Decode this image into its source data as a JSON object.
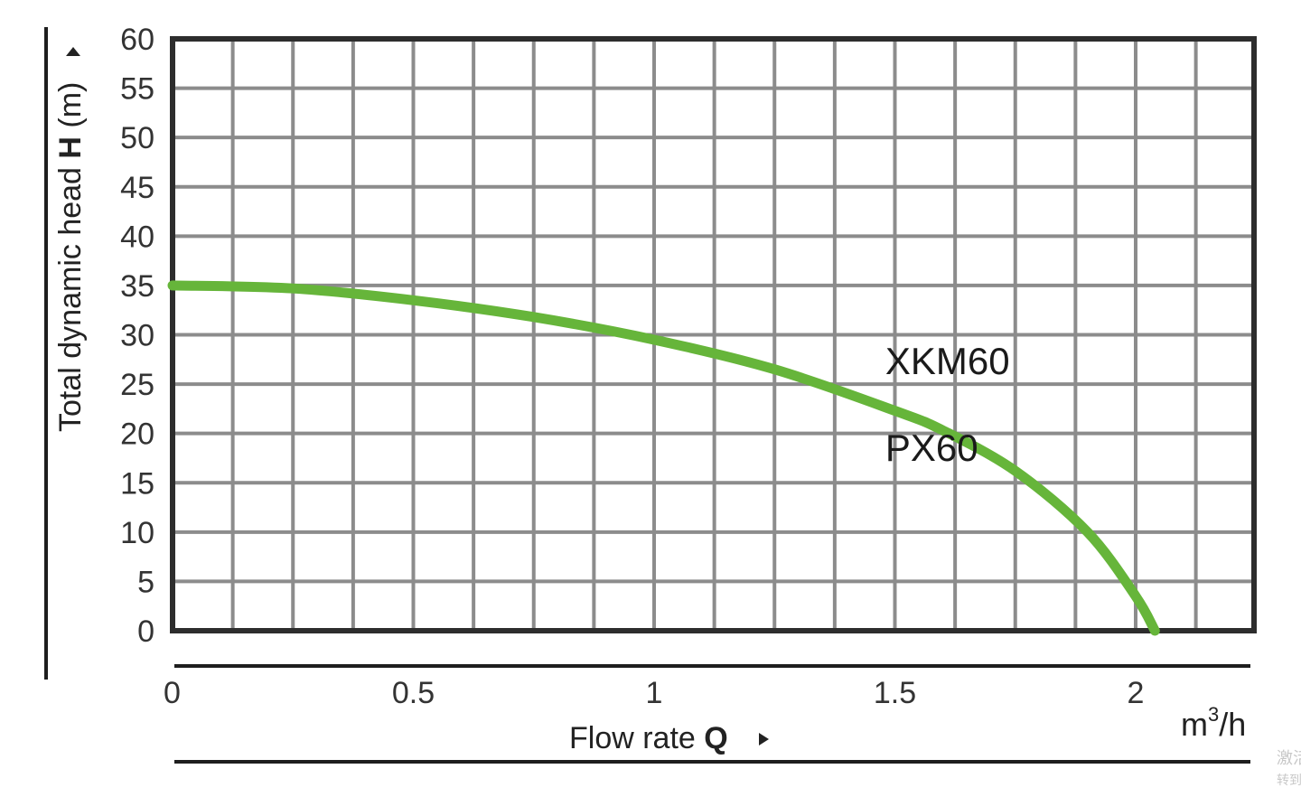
{
  "chart_data": {
    "type": "line",
    "title": "",
    "xlabel_text": "Flow rate ",
    "xlabel_symbol": "Q",
    "ylabel_text": "Total dynamic head ",
    "ylabel_symbol": "H",
    "ylabel_unit": " (m)",
    "x_unit_base": "m",
    "x_unit_sup": "3",
    "x_unit_rest": "/h",
    "xlim": [
      0,
      2.25
    ],
    "ylim": [
      0,
      60
    ],
    "x_ticks": [
      0,
      0.5,
      1,
      1.5,
      2
    ],
    "x_tick_labels": [
      "0",
      "0.5",
      "1",
      "1.5",
      "2"
    ],
    "y_ticks": [
      0,
      5,
      10,
      15,
      20,
      25,
      30,
      35,
      40,
      45,
      50,
      55,
      60
    ],
    "y_tick_labels": [
      "0",
      "5",
      "10",
      "15",
      "20",
      "25",
      "30",
      "35",
      "40",
      "45",
      "50",
      "55",
      "60"
    ],
    "grid": true,
    "series": [
      {
        "name": "XKM60 / PX60",
        "color": "#66b53a",
        "x": [
          0,
          0.25,
          0.5,
          0.75,
          1.0,
          1.25,
          1.5,
          1.6,
          1.75,
          1.9,
          2.0,
          2.04
        ],
        "y": [
          35,
          34.7,
          33.5,
          31.8,
          29.5,
          26.5,
          22.3,
          20.3,
          16.2,
          10.0,
          3.5,
          0
        ]
      }
    ],
    "annotations": [
      {
        "text": "XKM60",
        "x": 1.48,
        "y": 26
      },
      {
        "text": "PX60",
        "x": 1.48,
        "y": 17.2
      }
    ]
  },
  "watermark": {
    "line1": "激活",
    "line2": "转到"
  }
}
